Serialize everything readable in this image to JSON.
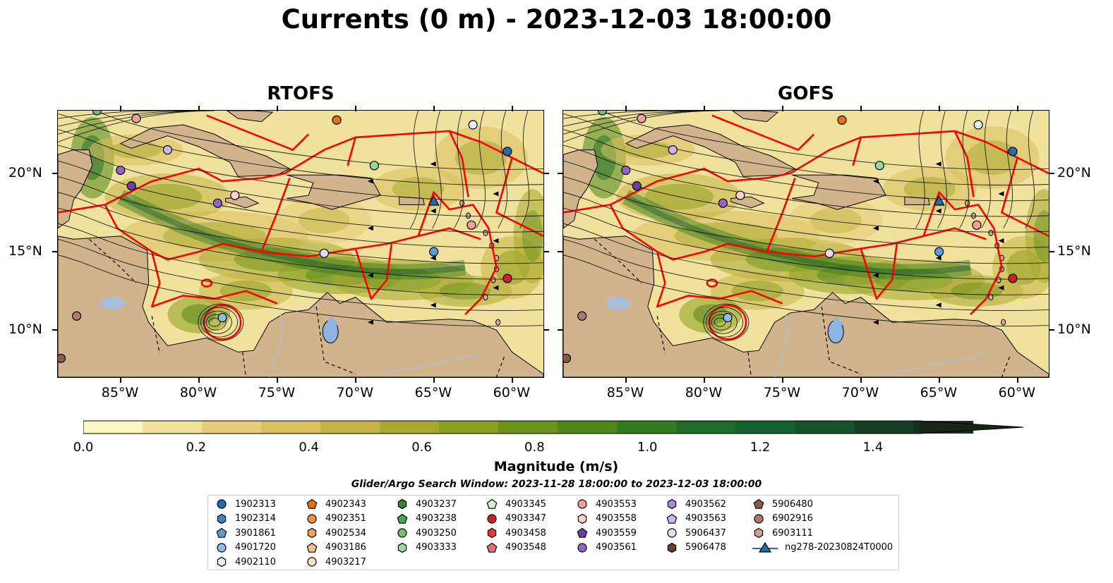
{
  "title": "Currents (0 m) - 2023-12-03 18:00:00",
  "panels": [
    {
      "title": "RTOFS"
    },
    {
      "title": "GOFS"
    }
  ],
  "axes": {
    "lon_ticks": [
      "85°W",
      "80°W",
      "75°W",
      "70°W",
      "65°W",
      "60°W"
    ],
    "lat_ticks": [
      "20°N",
      "15°N",
      "10°N"
    ]
  },
  "colorbar": {
    "label": "Magnitude (m/s)",
    "ticks": [
      "0.0",
      "0.2",
      "0.4",
      "0.6",
      "0.8",
      "1.0",
      "1.2",
      "1.4"
    ],
    "range": [
      0.0,
      1.5
    ],
    "extend": "max",
    "colors": [
      "#fdf8c3",
      "#f0e29c",
      "#e4cc78",
      "#d8c05c",
      "#c4b446",
      "#a8a830",
      "#8a9e1e",
      "#6c9218",
      "#4e8618",
      "#347a1e",
      "#1e6c2a",
      "#15602e",
      "#15522c",
      "#163f26",
      "#172f1f",
      "#1a2418"
    ]
  },
  "search_window": "Glider/Argo Search Window: 2023-11-28 18:00:00 to 2023-12-03 18:00:00",
  "legend": {
    "columns": [
      [
        {
          "label": "1902313",
          "marker": "circle",
          "color": "#1f6fb0"
        },
        {
          "label": "1902314",
          "marker": "hexagon",
          "color": "#3f86c0"
        },
        {
          "label": "3901861",
          "marker": "pentagon",
          "color": "#5aa0d6"
        },
        {
          "label": "4901720",
          "marker": "circle",
          "color": "#8dbde4"
        },
        {
          "label": "4902110",
          "marker": "hexagon",
          "color": "#e6f2fb"
        }
      ],
      [
        {
          "label": "4902343",
          "marker": "pentagon",
          "color": "#e8710b"
        },
        {
          "label": "4902351",
          "marker": "circle",
          "color": "#f2913a"
        },
        {
          "label": "4902534",
          "marker": "hexagon",
          "color": "#f6a25a"
        },
        {
          "label": "4903186",
          "marker": "pentagon",
          "color": "#f9c08c"
        },
        {
          "label": "4903217",
          "marker": "circle",
          "color": "#fde0c2"
        }
      ],
      [
        {
          "label": "4903237",
          "marker": "hexagon",
          "color": "#2e8b2e"
        },
        {
          "label": "4903238",
          "marker": "pentagon",
          "color": "#48a648"
        },
        {
          "label": "4903250",
          "marker": "circle",
          "color": "#6cc36c"
        },
        {
          "label": "4903333",
          "marker": "hexagon",
          "color": "#98d898"
        }
      ],
      [
        {
          "label": "4903345",
          "marker": "pentagon",
          "color": "#cdf2c8"
        },
        {
          "label": "4903347",
          "marker": "circle",
          "color": "#d62020"
        },
        {
          "label": "4903458",
          "marker": "hexagon",
          "color": "#e23a3a"
        },
        {
          "label": "4903548",
          "marker": "pentagon",
          "color": "#ec7070"
        }
      ],
      [
        {
          "label": "4903553",
          "marker": "circle",
          "color": "#f4a09a"
        },
        {
          "label": "4903558",
          "marker": "hexagon",
          "color": "#fbd0cc"
        },
        {
          "label": "4903559",
          "marker": "pentagon",
          "color": "#6a3fa0"
        },
        {
          "label": "4903561",
          "marker": "circle",
          "color": "#9466c4"
        }
      ],
      [
        {
          "label": "4903562",
          "marker": "hexagon",
          "color": "#b08ad6"
        },
        {
          "label": "4903563",
          "marker": "pentagon",
          "color": "#cdb4ea"
        },
        {
          "label": "5906437",
          "marker": "circle",
          "color": "#ead8f8"
        },
        {
          "label": "5906478",
          "marker": "hexagon",
          "color": "#6b3f2c"
        }
      ],
      [
        {
          "label": "5906480",
          "marker": "pentagon",
          "color": "#8e5a44"
        },
        {
          "label": "6902916",
          "marker": "circle",
          "color": "#b07a66"
        },
        {
          "label": "6903111",
          "marker": "hexagon",
          "color": "#d4a08c"
        },
        {
          "label": "ng278-20230824T0000",
          "marker": "triangle-line",
          "color": "#1f6fb0"
        }
      ]
    ]
  },
  "map": {
    "lon_range": [
      -89,
      -58
    ],
    "lat_range": [
      7,
      24
    ],
    "land_color": "#d2b48c",
    "boundary_color": "#ff0000",
    "streamline_color": "#000000",
    "lake_color": "#8fb3e0",
    "river_color": "#a8bfe0"
  }
}
